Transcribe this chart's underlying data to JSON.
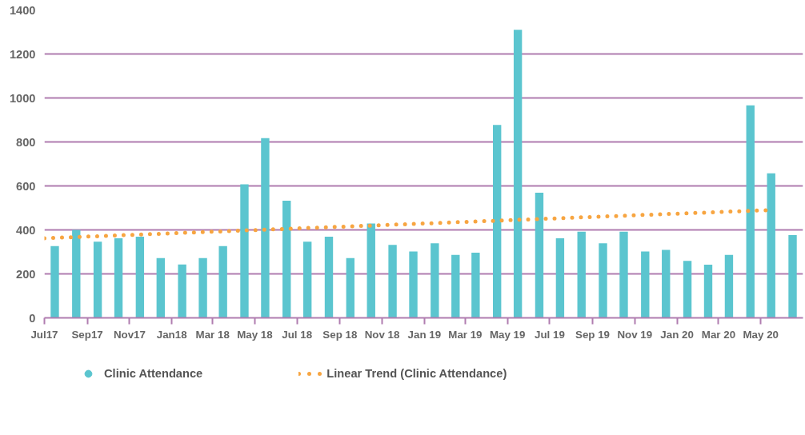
{
  "chart_data": {
    "type": "bar",
    "x": [
      "2017-07-16",
      "2017-08-16",
      "2017-09-16",
      "2017-10-16",
      "2017-11-16",
      "2017-12-16",
      "2018-01-16",
      "2018-02-15",
      "2018-03-16",
      "2018-04-16",
      "2018-05-16",
      "2018-06-16",
      "2018-07-16",
      "2018-08-16",
      "2018-09-16",
      "2018-10-16",
      "2018-11-16",
      "2018-12-16",
      "2019-01-16",
      "2019-02-15",
      "2019-03-16",
      "2019-04-16",
      "2019-05-16",
      "2019-06-16",
      "2019-07-16",
      "2019-08-16",
      "2019-09-16",
      "2019-10-16",
      "2019-11-16",
      "2019-12-16",
      "2020-01-16",
      "2020-02-15",
      "2020-03-16",
      "2020-04-16",
      "2020-05-16",
      "2020-06-16"
    ],
    "series": [
      {
        "name": "Clinic Attendance",
        "color": "#5bc5cf",
        "values": [
          326,
          400,
          346,
          362,
          369,
          272,
          243,
          272,
          326,
          607,
          817,
          533,
          346,
          369,
          272,
          429,
          332,
          302,
          339,
          286,
          296,
          877,
          1310,
          569,
          362,
          392,
          339,
          392,
          302,
          309,
          259,
          242,
          286,
          966,
          657,
          376
        ]
      },
      {
        "name": "Linear Trend (Clinic Attendance)",
        "type": "line",
        "color": "#f7a541",
        "line_style": "dotted",
        "x": [
          "2017-07-01",
          "2020-05-12"
        ],
        "values": [
          362,
          490
        ]
      }
    ],
    "xlim": [
      "2017-07-01",
      "2020-07-01"
    ],
    "xticks": [
      {
        "value": "2017-07-01",
        "label": "Jul17"
      },
      {
        "value": "2017-09-01",
        "label": "Sep17"
      },
      {
        "value": "2017-11-01",
        "label": "Nov17"
      },
      {
        "value": "2018-01-01",
        "label": "Jan18"
      },
      {
        "value": "2018-03-01",
        "label": "Mar 18"
      },
      {
        "value": "2018-05-01",
        "label": "May 18"
      },
      {
        "value": "2018-07-01",
        "label": "Jul 18"
      },
      {
        "value": "2018-09-01",
        "label": "Sep 18"
      },
      {
        "value": "2018-11-01",
        "label": "Nov 18"
      },
      {
        "value": "2019-01-01",
        "label": "Jan 19"
      },
      {
        "value": "2019-03-01",
        "label": "Mar 19"
      },
      {
        "value": "2019-05-01",
        "label": "May 19"
      },
      {
        "value": "2019-07-01",
        "label": "Jul 19"
      },
      {
        "value": "2019-09-01",
        "label": "Sep 19"
      },
      {
        "value": "2019-11-01",
        "label": "Nov 19"
      },
      {
        "value": "2020-01-01",
        "label": "Jan 20"
      },
      {
        "value": "2020-03-01",
        "label": "Mar 20"
      },
      {
        "value": "2020-05-01",
        "label": "May 20"
      }
    ],
    "ylim": [
      0,
      1400
    ],
    "yticks": [
      0,
      200,
      400,
      600,
      800,
      1000,
      1200,
      1400
    ],
    "grid": "y",
    "legend": "bottom"
  }
}
